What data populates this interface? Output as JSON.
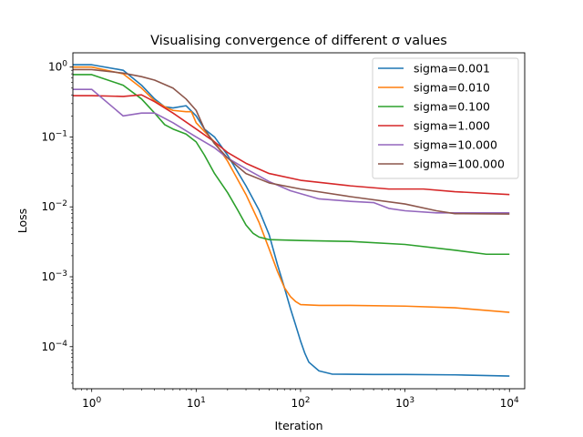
{
  "chart_data": {
    "type": "line",
    "title": "Visualising convergence of different σ values",
    "xlabel": "Iteration",
    "ylabel": "Loss",
    "xscale": "log",
    "yscale": "log",
    "xlim": [
      0.66,
      14000
    ],
    "ylim": [
      2.5e-05,
      1.6
    ],
    "x_ticks": [
      {
        "base": "10",
        "exp": "0",
        "value": 1
      },
      {
        "base": "10",
        "exp": "1",
        "value": 10
      },
      {
        "base": "10",
        "exp": "2",
        "value": 100
      },
      {
        "base": "10",
        "exp": "3",
        "value": 1000
      },
      {
        "base": "10",
        "exp": "4",
        "value": 10000
      }
    ],
    "y_ticks": [
      {
        "base": "10",
        "exp": "−4",
        "value": 0.0001
      },
      {
        "base": "10",
        "exp": "−3",
        "value": 0.001
      },
      {
        "base": "10",
        "exp": "−2",
        "value": 0.01
      },
      {
        "base": "10",
        "exp": "−1",
        "value": 0.1
      },
      {
        "base": "10",
        "exp": "0",
        "value": 1
      }
    ],
    "grid": false,
    "legend_position": "upper right",
    "series": [
      {
        "name": "sigma=0.001",
        "color": "#1f77b4",
        "points": [
          [
            0.66,
            1.08
          ],
          [
            1,
            1.08
          ],
          [
            2,
            0.9
          ],
          [
            3,
            0.55
          ],
          [
            4,
            0.35
          ],
          [
            5,
            0.27
          ],
          [
            6,
            0.26
          ],
          [
            8,
            0.28
          ],
          [
            10,
            0.2
          ],
          [
            12,
            0.13
          ],
          [
            15,
            0.1
          ],
          [
            20,
            0.055
          ],
          [
            30,
            0.02
          ],
          [
            40,
            0.009
          ],
          [
            50,
            0.004
          ],
          [
            60,
            0.0015
          ],
          [
            70,
            0.0007
          ],
          [
            80,
            0.00035
          ],
          [
            90,
            0.0002
          ],
          [
            100,
            0.00012
          ],
          [
            110,
            8e-05
          ],
          [
            120,
            6e-05
          ],
          [
            150,
            4.5e-05
          ],
          [
            200,
            4.05e-05
          ],
          [
            500,
            4e-05
          ],
          [
            1000,
            4e-05
          ],
          [
            3000,
            3.95e-05
          ],
          [
            10000,
            3.8e-05
          ]
        ]
      },
      {
        "name": "sigma=0.010",
        "color": "#ff7f0e",
        "points": [
          [
            0.66,
            1.0
          ],
          [
            1,
            1.0
          ],
          [
            2,
            0.8
          ],
          [
            3,
            0.5
          ],
          [
            4,
            0.33
          ],
          [
            5,
            0.27
          ],
          [
            6,
            0.24
          ],
          [
            8,
            0.23
          ],
          [
            9,
            0.23
          ],
          [
            10,
            0.16
          ],
          [
            12,
            0.12
          ],
          [
            15,
            0.085
          ],
          [
            20,
            0.045
          ],
          [
            30,
            0.015
          ],
          [
            40,
            0.006
          ],
          [
            50,
            0.0025
          ],
          [
            60,
            0.0012
          ],
          [
            70,
            0.0007
          ],
          [
            80,
            0.00052
          ],
          [
            90,
            0.00044
          ],
          [
            100,
            0.0004
          ],
          [
            150,
            0.00039
          ],
          [
            300,
            0.00039
          ],
          [
            1000,
            0.00038
          ],
          [
            3000,
            0.00036
          ],
          [
            10000,
            0.00031
          ]
        ]
      },
      {
        "name": "sigma=0.100",
        "color": "#2ca02c",
        "points": [
          [
            0.66,
            0.78
          ],
          [
            1,
            0.78
          ],
          [
            2,
            0.55
          ],
          [
            3,
            0.35
          ],
          [
            4,
            0.22
          ],
          [
            5,
            0.15
          ],
          [
            6,
            0.13
          ],
          [
            8,
            0.11
          ],
          [
            10,
            0.085
          ],
          [
            12,
            0.055
          ],
          [
            15,
            0.03
          ],
          [
            20,
            0.016
          ],
          [
            25,
            0.009
          ],
          [
            30,
            0.0055
          ],
          [
            35,
            0.0042
          ],
          [
            40,
            0.0037
          ],
          [
            50,
            0.0034
          ],
          [
            100,
            0.0033
          ],
          [
            300,
            0.0032
          ],
          [
            1000,
            0.0029
          ],
          [
            3000,
            0.0024
          ],
          [
            6000,
            0.0021
          ],
          [
            10000,
            0.0021
          ]
        ]
      },
      {
        "name": "sigma=1.000",
        "color": "#d62728",
        "points": [
          [
            0.66,
            0.39
          ],
          [
            1,
            0.39
          ],
          [
            2,
            0.38
          ],
          [
            3,
            0.4
          ],
          [
            4,
            0.32
          ],
          [
            6,
            0.22
          ],
          [
            10,
            0.13
          ],
          [
            15,
            0.085
          ],
          [
            20,
            0.06
          ],
          [
            30,
            0.042
          ],
          [
            50,
            0.03
          ],
          [
            100,
            0.024
          ],
          [
            300,
            0.02
          ],
          [
            700,
            0.018
          ],
          [
            1500,
            0.018
          ],
          [
            3000,
            0.0165
          ],
          [
            10000,
            0.015
          ]
        ]
      },
      {
        "name": "sigma=10.000",
        "color": "#9467bd",
        "points": [
          [
            0.66,
            0.48
          ],
          [
            1,
            0.48
          ],
          [
            2,
            0.2
          ],
          [
            3,
            0.22
          ],
          [
            4,
            0.22
          ],
          [
            6,
            0.16
          ],
          [
            10,
            0.1
          ],
          [
            15,
            0.07
          ],
          [
            20,
            0.05
          ],
          [
            30,
            0.035
          ],
          [
            50,
            0.023
          ],
          [
            80,
            0.017
          ],
          [
            150,
            0.013
          ],
          [
            300,
            0.012
          ],
          [
            500,
            0.0115
          ],
          [
            700,
            0.0095
          ],
          [
            1000,
            0.0088
          ],
          [
            2000,
            0.0082
          ],
          [
            10000,
            0.0082
          ]
        ]
      },
      {
        "name": "sigma=100.000",
        "color": "#8c564b",
        "points": [
          [
            0.66,
            0.92
          ],
          [
            1,
            0.92
          ],
          [
            2,
            0.82
          ],
          [
            3,
            0.73
          ],
          [
            4,
            0.65
          ],
          [
            6,
            0.5
          ],
          [
            8,
            0.35
          ],
          [
            10,
            0.24
          ],
          [
            12,
            0.13
          ],
          [
            15,
            0.08
          ],
          [
            20,
            0.05
          ],
          [
            30,
            0.03
          ],
          [
            50,
            0.022
          ],
          [
            100,
            0.018
          ],
          [
            300,
            0.014
          ],
          [
            1000,
            0.011
          ],
          [
            2000,
            0.0088
          ],
          [
            3000,
            0.008
          ],
          [
            10000,
            0.0079
          ]
        ]
      }
    ]
  }
}
